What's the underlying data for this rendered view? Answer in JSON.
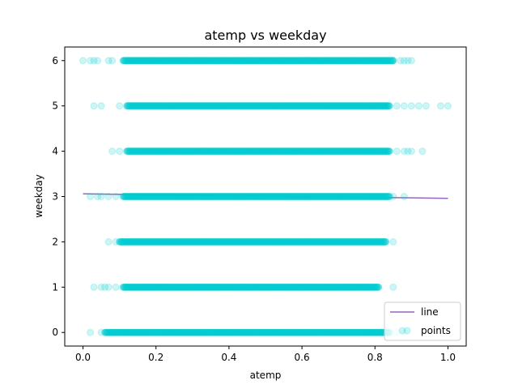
{
  "chart_data": {
    "type": "scatter",
    "title": "atemp vs weekday",
    "xlabel": "atemp",
    "ylabel": "weekday",
    "xlim": [
      -0.05,
      1.05
    ],
    "ylim": [
      -0.3,
      6.3
    ],
    "xticks": [
      0.0,
      0.2,
      0.4,
      0.6,
      0.8,
      1.0
    ],
    "xtick_labels": [
      "0.0",
      "0.2",
      "0.4",
      "0.6",
      "0.8",
      "1.0"
    ],
    "yticks": [
      0,
      1,
      2,
      3,
      4,
      5,
      6
    ],
    "ytick_labels": [
      "0",
      "1",
      "2",
      "3",
      "4",
      "5",
      "6"
    ],
    "grid": false,
    "legend_position": "bottom-right",
    "series": [
      {
        "name": "line",
        "kind": "line",
        "color": "#9467bd",
        "x": [
          0.0,
          1.0
        ],
        "y": [
          3.06,
          2.96
        ]
      },
      {
        "name": "points",
        "kind": "scatter",
        "color": "#00ced1",
        "opacity": 0.2,
        "dense_ranges": [
          {
            "y": 0,
            "x": [
              0.06,
              0.84
            ]
          },
          {
            "y": 1,
            "x": [
              0.11,
              0.81
            ]
          },
          {
            "y": 2,
            "x": [
              0.1,
              0.83
            ]
          },
          {
            "y": 3,
            "x": [
              0.11,
              0.84
            ]
          },
          {
            "y": 4,
            "x": [
              0.12,
              0.84
            ]
          },
          {
            "y": 5,
            "x": [
              0.12,
              0.84
            ]
          },
          {
            "y": 6,
            "x": [
              0.11,
              0.85
            ]
          }
        ],
        "sparse_points": [
          [
            0.02,
            0
          ],
          [
            0.05,
            0
          ],
          [
            0.08,
            0
          ],
          [
            0.86,
            0
          ],
          [
            0.88,
            0
          ],
          [
            0.03,
            1
          ],
          [
            0.05,
            1
          ],
          [
            0.06,
            1
          ],
          [
            0.07,
            1
          ],
          [
            0.09,
            1
          ],
          [
            0.85,
            1
          ],
          [
            0.07,
            2
          ],
          [
            0.09,
            2
          ],
          [
            0.85,
            2
          ],
          [
            0.02,
            3
          ],
          [
            0.04,
            3
          ],
          [
            0.05,
            3
          ],
          [
            0.07,
            3
          ],
          [
            0.09,
            3
          ],
          [
            0.85,
            3
          ],
          [
            0.88,
            3
          ],
          [
            0.08,
            4
          ],
          [
            0.1,
            4
          ],
          [
            0.86,
            4
          ],
          [
            0.88,
            4
          ],
          [
            0.89,
            4
          ],
          [
            0.9,
            4
          ],
          [
            0.93,
            4
          ],
          [
            0.03,
            5
          ],
          [
            0.05,
            5
          ],
          [
            0.1,
            5
          ],
          [
            0.86,
            5
          ],
          [
            0.88,
            5
          ],
          [
            0.9,
            5
          ],
          [
            0.92,
            5
          ],
          [
            0.94,
            5
          ],
          [
            0.98,
            5
          ],
          [
            1.0,
            5
          ],
          [
            0.0,
            6
          ],
          [
            0.02,
            6
          ],
          [
            0.03,
            6
          ],
          [
            0.04,
            6
          ],
          [
            0.07,
            6
          ],
          [
            0.08,
            6
          ],
          [
            0.85,
            6
          ],
          [
            0.87,
            6
          ],
          [
            0.88,
            6
          ],
          [
            0.89,
            6
          ],
          [
            0.9,
            6
          ]
        ]
      }
    ]
  }
}
